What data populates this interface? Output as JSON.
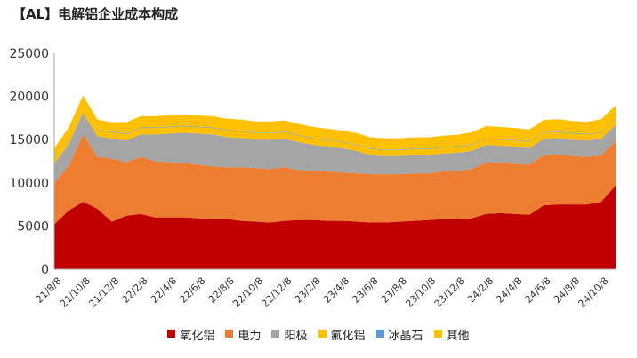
{
  "chart_data": {
    "type": "area",
    "stacked": true,
    "title": "【AL】电解铝企业成本构成",
    "xlabel": "",
    "ylabel": "",
    "ylim": [
      0,
      25000
    ],
    "yticks": [
      0,
      5000,
      10000,
      15000,
      20000,
      25000
    ],
    "grid": false,
    "legend": "bottom",
    "x_tick_labels": [
      "21/8/8",
      "21/10/8",
      "21/12/8",
      "22/2/8",
      "22/4/8",
      "22/6/8",
      "22/8/8",
      "22/10/8",
      "22/12/8",
      "23/2/8",
      "23/4/8",
      "23/6/8",
      "23/8/8",
      "23/10/8",
      "23/12/8",
      "24/2/8",
      "24/4/8",
      "24/6/8",
      "24/8/8",
      "24/10/8"
    ],
    "x": [
      "21/8/8",
      "21/9/8",
      "21/10/8",
      "21/11/8",
      "21/12/8",
      "22/1/8",
      "22/2/8",
      "22/3/8",
      "22/4/8",
      "22/5/8",
      "22/6/8",
      "22/7/8",
      "22/8/8",
      "22/9/8",
      "22/10/8",
      "22/11/8",
      "22/12/8",
      "23/1/8",
      "23/2/8",
      "23/3/8",
      "23/4/8",
      "23/5/8",
      "23/6/8",
      "23/7/8",
      "23/8/8",
      "23/9/8",
      "23/10/8",
      "23/11/8",
      "23/12/8",
      "24/1/8",
      "24/2/8",
      "24/3/8",
      "24/4/8",
      "24/5/8",
      "24/6/8",
      "24/7/8",
      "24/8/8",
      "24/9/8",
      "24/10/8",
      "24/11/8"
    ],
    "series": [
      {
        "name": "氧化铝",
        "color": "#c00000",
        "values": [
          5200,
          6800,
          7800,
          7000,
          5500,
          6200,
          6400,
          6000,
          6000,
          6000,
          5900,
          5800,
          5800,
          5600,
          5500,
          5400,
          5600,
          5700,
          5700,
          5600,
          5600,
          5500,
          5400,
          5400,
          5500,
          5600,
          5700,
          5800,
          5800,
          5900,
          6400,
          6500,
          6400,
          6300,
          7400,
          7500,
          7500,
          7500,
          7800,
          9700
        ]
      },
      {
        "name": "电力",
        "color": "#ed7d31",
        "values": [
          4800,
          5200,
          7800,
          6000,
          7300,
          6200,
          6600,
          6500,
          6400,
          6300,
          6200,
          6100,
          6000,
          6200,
          6200,
          6200,
          6200,
          5800,
          5700,
          5700,
          5600,
          5600,
          5600,
          5600,
          5500,
          5500,
          5400,
          5500,
          5600,
          5700,
          5900,
          5800,
          5800,
          5800,
          5800,
          5800,
          5600,
          5500,
          5400,
          5100
        ]
      },
      {
        "name": "阳极",
        "color": "#a5a5a5",
        "values": [
          2200,
          2500,
          2500,
          2400,
          2300,
          2500,
          2600,
          3100,
          3300,
          3500,
          3600,
          3700,
          3500,
          3400,
          3300,
          3400,
          3300,
          3200,
          3000,
          2900,
          2800,
          2600,
          2200,
          2100,
          2100,
          2100,
          2100,
          2100,
          2100,
          2100,
          2100,
          2000,
          2000,
          1900,
          1900,
          1900,
          1900,
          1900,
          1900,
          1900
        ]
      },
      {
        "name": "氟化铝",
        "color": "#ffc000",
        "values": [
          750,
          750,
          750,
          750,
          750,
          750,
          750,
          750,
          750,
          750,
          750,
          750,
          750,
          750,
          750,
          750,
          750,
          750,
          700,
          700,
          700,
          700,
          700,
          700,
          700,
          700,
          700,
          700,
          700,
          700,
          700,
          700,
          700,
          700,
          700,
          700,
          700,
          700,
          700,
          700
        ]
      },
      {
        "name": "冰晶石",
        "color": "#5b9bd5",
        "values": [
          60,
          60,
          60,
          60,
          60,
          60,
          60,
          60,
          60,
          60,
          60,
          60,
          60,
          60,
          60,
          60,
          60,
          60,
          60,
          60,
          60,
          60,
          60,
          60,
          60,
          60,
          60,
          60,
          60,
          60,
          60,
          60,
          60,
          60,
          60,
          60,
          60,
          60,
          60,
          60
        ]
      },
      {
        "name": "其他",
        "color": "#ffc000",
        "values": [
          1000,
          1100,
          1200,
          1100,
          1100,
          1300,
          1300,
          1300,
          1300,
          1300,
          1300,
          1300,
          1300,
          1300,
          1300,
          1300,
          1300,
          1300,
          1300,
          1300,
          1300,
          1300,
          1300,
          1300,
          1300,
          1300,
          1300,
          1300,
          1300,
          1400,
          1400,
          1400,
          1400,
          1400,
          1400,
          1400,
          1400,
          1400,
          1500,
          1500
        ]
      }
    ]
  }
}
